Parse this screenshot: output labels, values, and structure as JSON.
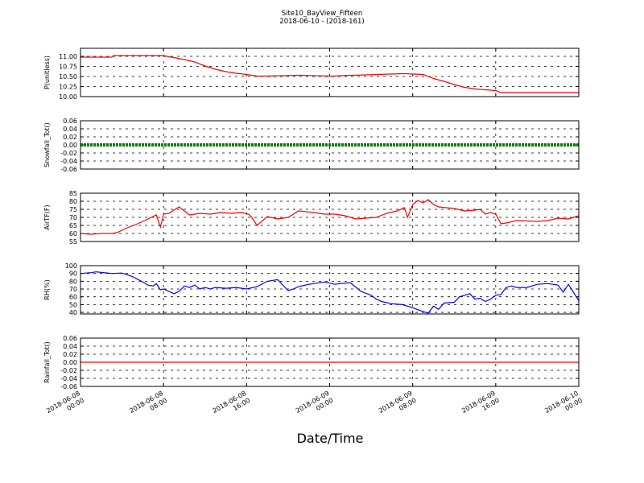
{
  "figure": {
    "title": "Site10_BayView_Fifteen",
    "subtitle": "2018-06-10 - (2018-161)",
    "xlabel": "Date/Time",
    "x_ticks": [
      [
        "2018-06-08",
        "00:00"
      ],
      [
        "2018-06-08",
        "08:00"
      ],
      [
        "2018-06-08",
        "16:00"
      ],
      [
        "2018-06-09",
        "00:00"
      ],
      [
        "2018-06-09",
        "08:00"
      ],
      [
        "2018-06-09",
        "16:00"
      ],
      [
        "2018-06-10",
        "00:00"
      ]
    ]
  },
  "chart_data": [
    {
      "type": "line",
      "ylabel": "P(unitless)",
      "color": "#ff0000",
      "ylim": [
        10.0,
        11.2
      ],
      "yticks": [
        "10.00",
        "10.25",
        "10.50",
        "10.75",
        "11.00"
      ],
      "ytick_values": [
        10.0,
        10.25,
        10.5,
        10.75,
        11.0
      ],
      "x_hours": [
        0,
        3,
        3.2,
        8,
        8.5,
        9,
        10,
        11,
        12,
        13,
        14,
        15,
        16,
        17,
        18,
        21,
        21.2,
        24,
        24.3,
        26,
        26.3,
        31,
        31.2,
        32,
        33,
        34,
        35,
        36,
        37,
        38,
        39,
        40,
        40.5,
        46,
        48
      ],
      "values": [
        10.98,
        10.98,
        11.02,
        11.02,
        10.99,
        10.97,
        10.92,
        10.86,
        10.76,
        10.68,
        10.62,
        10.58,
        10.55,
        10.51,
        10.51,
        10.53,
        10.53,
        10.51,
        10.51,
        10.53,
        10.53,
        10.57,
        10.57,
        10.56,
        10.55,
        10.45,
        10.38,
        10.3,
        10.23,
        10.19,
        10.17,
        10.15,
        10.1,
        10.1,
        10.1
      ]
    },
    {
      "type": "line",
      "ylabel": "Snowfall_Tot()",
      "color": "#008000",
      "ylim": [
        -0.06,
        0.06
      ],
      "yticks": [
        "-0.06",
        "-0.04",
        "-0.02",
        "0.00",
        "0.02",
        "0.04",
        "0.06"
      ],
      "ytick_values": [
        -0.06,
        -0.04,
        -0.02,
        0.0,
        0.02,
        0.04,
        0.06
      ],
      "x_hours": [
        0,
        48
      ],
      "values": [
        0,
        0
      ]
    },
    {
      "type": "line",
      "ylabel": "AirTF(F)",
      "color": "#ff0000",
      "ylim": [
        55,
        85
      ],
      "yticks": [
        "55",
        "60",
        "65",
        "70",
        "75",
        "80",
        "85"
      ],
      "ytick_values": [
        55,
        60,
        65,
        70,
        75,
        80,
        85
      ],
      "x_hours": [
        0,
        1,
        2,
        3,
        3.5,
        4.5,
        5.5,
        6.5,
        7.3,
        7.7,
        8,
        8.5,
        9.5,
        10.5,
        11.5,
        12.5,
        13.5,
        14.5,
        15.5,
        16.2,
        16.5,
        17,
        18,
        19,
        19.5,
        20,
        21,
        22.5,
        23.5,
        24.5,
        25.5,
        26.5,
        27.5,
        28.5,
        29.5,
        30.5,
        31.2,
        31.5,
        32,
        32.5,
        33,
        33.5,
        34,
        34.5,
        36,
        37,
        38,
        38.5,
        39,
        39.5,
        40,
        40.5,
        41,
        42,
        44,
        45,
        46,
        47,
        48
      ],
      "values": [
        60,
        59.5,
        60,
        60,
        60.5,
        63.5,
        66,
        69,
        71.5,
        64,
        72,
        72.5,
        76.5,
        71.5,
        72.5,
        72,
        73,
        72.5,
        73,
        72,
        70,
        65,
        70.5,
        69,
        69.5,
        70,
        74,
        73,
        72,
        72,
        71,
        69,
        69.5,
        70,
        72.5,
        74,
        76,
        70,
        78,
        80.5,
        79,
        81,
        78,
        76.5,
        75.5,
        74,
        74.5,
        75,
        72,
        73,
        72,
        66,
        66.5,
        68,
        67.5,
        68,
        69.5,
        69,
        71
      ]
    },
    {
      "type": "line",
      "ylabel": "RH(%)",
      "color": "#0000ff",
      "ylim": [
        38,
        100
      ],
      "yticks": [
        "40",
        "50",
        "60",
        "70",
        "80",
        "90",
        "100"
      ],
      "ytick_values": [
        40,
        50,
        60,
        70,
        80,
        90,
        100
      ],
      "x_hours": [
        0,
        1,
        1.5,
        3,
        4,
        5,
        6,
        6.5,
        7,
        7.3,
        7.7,
        8,
        9,
        9.5,
        10,
        10.5,
        11,
        11.5,
        12,
        12.5,
        13,
        14,
        15,
        16,
        17,
        18,
        19,
        20,
        20.5,
        21,
        22,
        23.5,
        24.5,
        25,
        26,
        27,
        28,
        28.5,
        29,
        30,
        31,
        32,
        33,
        33.5,
        34,
        34.5,
        35,
        36,
        36.5,
        37,
        37.5,
        38,
        38.5,
        39,
        39.5,
        40,
        40.5,
        41,
        41.5,
        42,
        43,
        44,
        45,
        45.5,
        46,
        46.5,
        47,
        48
      ],
      "values": [
        90,
        91,
        92,
        90,
        90.5,
        86,
        79,
        75,
        74,
        77,
        69,
        70,
        64,
        67,
        74,
        72,
        75,
        70,
        72,
        70,
        72,
        71,
        72,
        70,
        73,
        80,
        82,
        68,
        70,
        73,
        76,
        79,
        76,
        77,
        78,
        67,
        62,
        57,
        54,
        51,
        50,
        46,
        41,
        39,
        48,
        44,
        52,
        53,
        60,
        62,
        64,
        57,
        58,
        54,
        57,
        62,
        63,
        72,
        74,
        72,
        72,
        76,
        77,
        76,
        75,
        66,
        76,
        55
      ]
    },
    {
      "type": "line",
      "ylabel": "Rainfall_Tot()",
      "color": "#ff0000",
      "ylim": [
        -0.06,
        0.06
      ],
      "yticks": [
        "-0.06",
        "-0.04",
        "-0.02",
        "0.00",
        "0.02",
        "0.04",
        "0.06"
      ],
      "ytick_values": [
        -0.06,
        -0.04,
        -0.02,
        0.0,
        0.02,
        0.04,
        0.06
      ],
      "x_hours": [
        0,
        48
      ],
      "values": [
        0,
        0
      ]
    }
  ]
}
